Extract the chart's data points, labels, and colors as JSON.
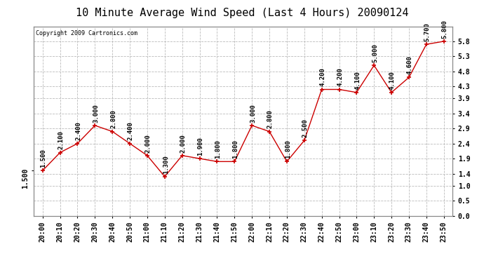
{
  "title": "10 Minute Average Wind Speed (Last 4 Hours) 20090124",
  "copyright": "Copyright 2009 Cartronics.com",
  "x_labels": [
    "20:00",
    "20:10",
    "20:20",
    "20:30",
    "20:40",
    "20:50",
    "21:00",
    "21:10",
    "21:20",
    "21:30",
    "21:40",
    "21:50",
    "22:00",
    "22:10",
    "22:20",
    "22:30",
    "22:40",
    "22:50",
    "23:00",
    "23:10",
    "23:20",
    "23:30",
    "23:40",
    "23:50"
  ],
  "y_vals": [
    1.5,
    2.1,
    2.4,
    3.0,
    2.8,
    2.4,
    2.0,
    1.3,
    2.0,
    1.9,
    1.8,
    1.8,
    3.0,
    2.8,
    1.8,
    2.5,
    4.2,
    4.2,
    4.1,
    5.0,
    4.1,
    4.6,
    5.7,
    5.8
  ],
  "annotation_labels": [
    "1.500",
    "2.100",
    "2.400",
    "3.000",
    "2.800",
    "2.400",
    "2.000",
    "1.300",
    "2.000",
    "1.900",
    "1.800",
    "1.800",
    "3.000",
    "2.800",
    "1.800",
    "2.500",
    "4.200",
    "4.200",
    "4.100",
    "5.000",
    "4.100",
    "4.600",
    "5.700",
    "5.800"
  ],
  "line_color": "#cc0000",
  "bg_color": "#ffffff",
  "grid_color": "#bbbbbb",
  "ylim": [
    0.0,
    6.3
  ],
  "right_yticks": [
    0.0,
    0.5,
    1.0,
    1.4,
    1.9,
    2.4,
    2.9,
    3.4,
    3.9,
    4.3,
    4.8,
    5.3,
    5.8
  ],
  "left_ytick_val": 1.5,
  "left_ytick_label": "1.500",
  "title_fontsize": 11,
  "tick_fontsize": 7,
  "annot_fontsize": 6.5
}
